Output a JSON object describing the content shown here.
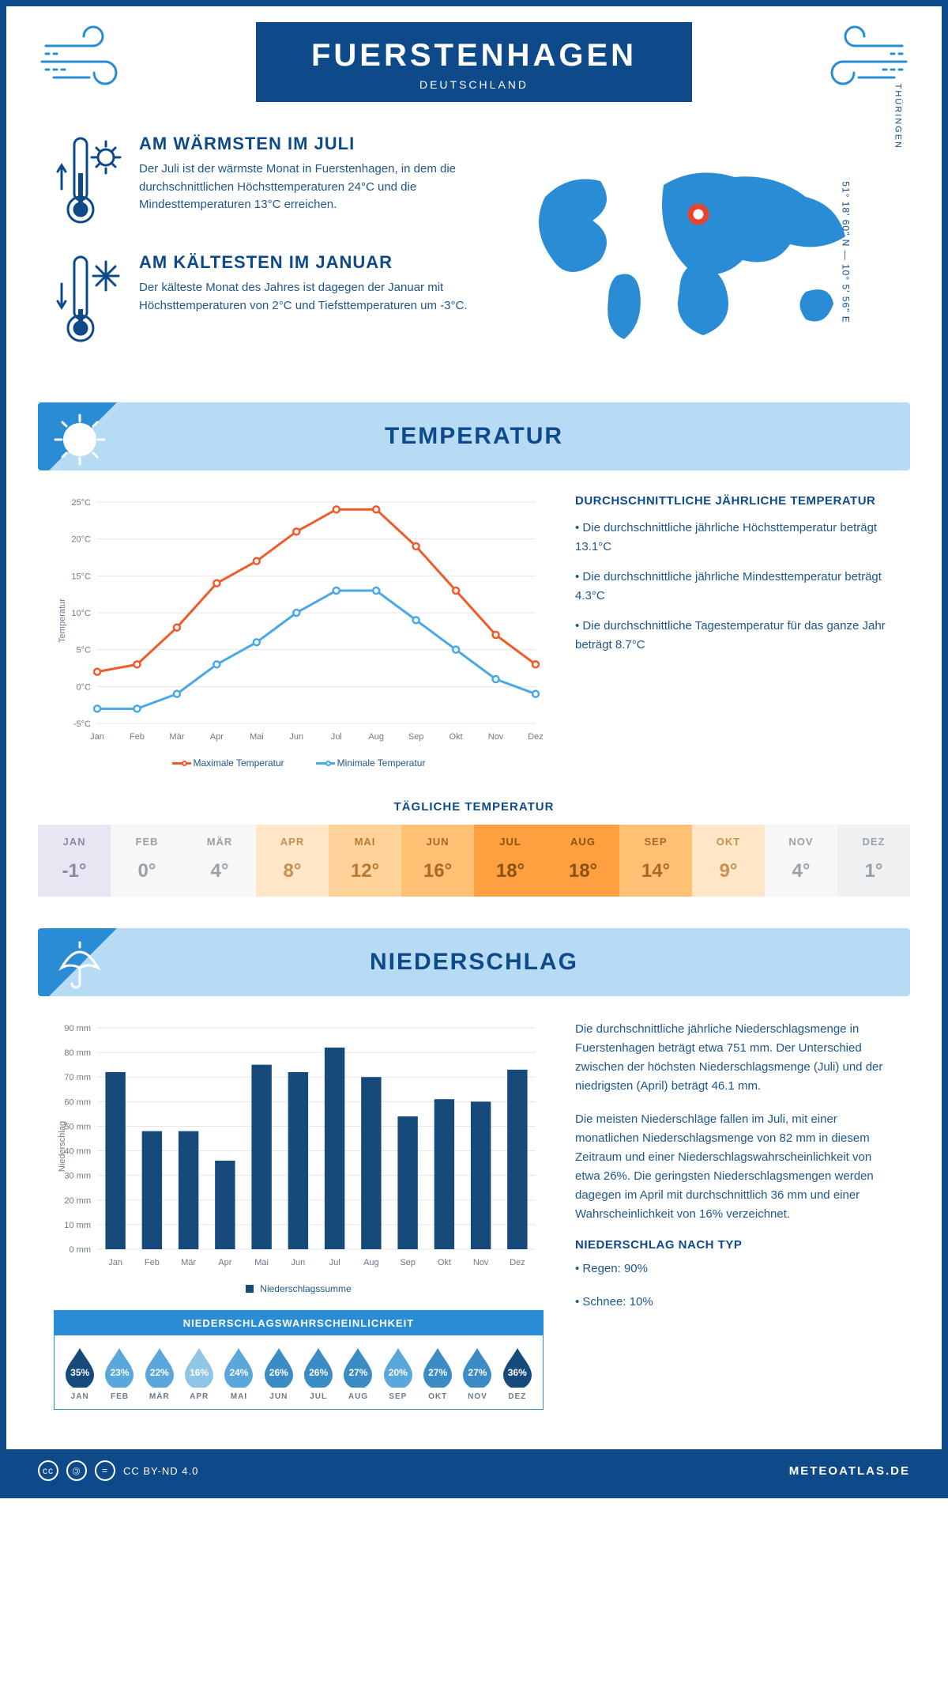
{
  "header": {
    "title": "FUERSTENHAGEN",
    "subtitle": "DEUTSCHLAND"
  },
  "location": {
    "coords": "51° 18' 60\" N — 10° 5' 56\" E",
    "region": "THÜRINGEN"
  },
  "warm": {
    "title": "AM WÄRMSTEN IM JULI",
    "text": "Der Juli ist der wärmste Monat in Fuerstenhagen, in dem die durchschnittlichen Höchsttemperaturen 24°C und die Mindesttemperaturen 13°C erreichen."
  },
  "cold": {
    "title": "AM KÄLTESTEN IM JANUAR",
    "text": "Der kälteste Monat des Jahres ist dagegen der Januar mit Höchsttemperaturen von 2°C und Tiefsttemperaturen um -3°C."
  },
  "tempSection": {
    "title": "TEMPERATUR"
  },
  "tempChart": {
    "type": "line",
    "months": [
      "Jan",
      "Feb",
      "Mär",
      "Apr",
      "Mai",
      "Jun",
      "Jul",
      "Aug",
      "Sep",
      "Okt",
      "Nov",
      "Dez"
    ],
    "max": [
      2,
      3,
      8,
      14,
      17,
      21,
      24,
      24,
      19,
      13,
      7,
      3
    ],
    "min": [
      -3,
      -3,
      -1,
      3,
      6,
      10,
      13,
      13,
      9,
      5,
      1,
      -1
    ],
    "max_color": "#f15a29",
    "min_color": "#4aa8e8",
    "grid_color": "#e6e6e6",
    "axis_color": "#9aa5af",
    "ylabel": "Temperatur",
    "ylim": [
      -5,
      25
    ],
    "ytick_step": 5,
    "legend_max": "Maximale Temperatur",
    "legend_min": "Minimale Temperatur"
  },
  "tempText": {
    "title": "DURCHSCHNITTLICHE JÄHRLICHE TEMPERATUR",
    "b1": "• Die durchschnittliche jährliche Höchsttemperatur beträgt 13.1°C",
    "b2": "• Die durchschnittliche jährliche Mindesttemperatur beträgt 4.3°C",
    "b3": "• Die durchschnittliche Tagestemperatur für das ganze Jahr beträgt 8.7°C"
  },
  "daily": {
    "title": "TÄGLICHE TEMPERATUR",
    "months": [
      "JAN",
      "FEB",
      "MÄR",
      "APR",
      "MAI",
      "JUN",
      "JUL",
      "AUG",
      "SEP",
      "OKT",
      "NOV",
      "DEZ"
    ],
    "values": [
      "-1°",
      "0°",
      "4°",
      "8°",
      "12°",
      "16°",
      "18°",
      "18°",
      "14°",
      "9°",
      "4°",
      "1°"
    ],
    "colors": [
      "#e8e6f2",
      "#f7f7f7",
      "#f7f7f7",
      "#ffe6c7",
      "#ffd39a",
      "#ffc275",
      "#ffa040",
      "#ffa040",
      "#ffc275",
      "#ffe6c7",
      "#f7f7f7",
      "#eef0f2"
    ],
    "text_colors": [
      "#8a8aa8",
      "#98a0a8",
      "#98a0a8",
      "#c79050",
      "#b87a30",
      "#a86a20",
      "#8a5210",
      "#8a5210",
      "#a86a20",
      "#c79050",
      "#98a0a8",
      "#98a0a8"
    ]
  },
  "precipSection": {
    "title": "NIEDERSCHLAG"
  },
  "precipChart": {
    "type": "bar",
    "months": [
      "Jan",
      "Feb",
      "Mär",
      "Apr",
      "Mai",
      "Jun",
      "Jul",
      "Aug",
      "Sep",
      "Okt",
      "Nov",
      "Dez"
    ],
    "values": [
      72,
      48,
      48,
      36,
      75,
      72,
      82,
      70,
      54,
      61,
      60,
      73
    ],
    "bar_color": "#154a7a",
    "grid_color": "#e6e6e6",
    "axis_color": "#9aa5af",
    "ylabel": "Niederschlag",
    "ylim": [
      0,
      90
    ],
    "ytick_step": 10,
    "legend": "Niederschlagssumme"
  },
  "precipText": {
    "p1": "Die durchschnittliche jährliche Niederschlagsmenge in Fuerstenhagen beträgt etwa 751 mm. Der Unterschied zwischen der höchsten Niederschlagsmenge (Juli) und der niedrigsten (April) beträgt 46.1 mm.",
    "p2": "Die meisten Niederschläge fallen im Juli, mit einer monatlichen Niederschlagsmenge von 82 mm in diesem Zeitraum und einer Niederschlagswahrscheinlichkeit von etwa 26%. Die geringsten Niederschlagsmengen werden dagegen im April mit durchschnittlich 36 mm und einer Wahrscheinlichkeit von 16% verzeichnet.",
    "typeTitle": "NIEDERSCHLAG NACH TYP",
    "t1": "• Regen: 90%",
    "t2": "• Schnee: 10%"
  },
  "prob": {
    "title": "NIEDERSCHLAGSWAHRSCHEINLICHKEIT",
    "months": [
      "JAN",
      "FEB",
      "MÄR",
      "APR",
      "MAI",
      "JUN",
      "JUL",
      "AUG",
      "SEP",
      "OKT",
      "NOV",
      "DEZ"
    ],
    "values": [
      "35%",
      "23%",
      "22%",
      "16%",
      "24%",
      "26%",
      "26%",
      "27%",
      "20%",
      "27%",
      "27%",
      "36%"
    ],
    "colors": [
      "#154a7a",
      "#5aa7db",
      "#5aa7db",
      "#8fc6e8",
      "#5aa7db",
      "#3b8bc4",
      "#3b8bc4",
      "#3b8bc4",
      "#5aa7db",
      "#3b8bc4",
      "#3b8bc4",
      "#154a7a"
    ]
  },
  "footer": {
    "license": "CC BY-ND 4.0",
    "brand": "METEOATLAS.DE"
  },
  "palette": {
    "primary": "#0e4a8a",
    "accent": "#2b8cd6",
    "light": "#b7dbf5"
  }
}
